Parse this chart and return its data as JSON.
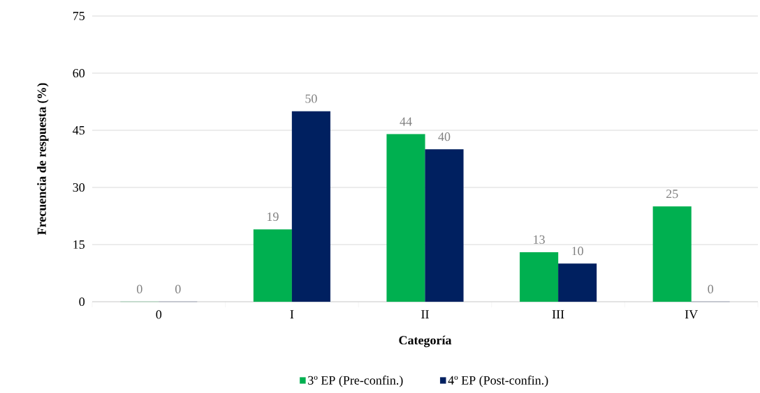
{
  "chart_data": {
    "type": "bar",
    "xlabel": "Categoría",
    "ylabel": "Frecuencia de respuesta (%)",
    "categories": [
      "0",
      "I",
      "II",
      "III",
      "IV"
    ],
    "series": [
      {
        "name": "3º EP (Pre-confin.)",
        "color": "#00b050",
        "values": [
          0,
          19,
          44,
          13,
          25
        ]
      },
      {
        "name": "4º EP (Post-confin.)",
        "color": "#002060",
        "values": [
          0,
          50,
          40,
          10,
          0
        ]
      }
    ],
    "ylim": [
      0,
      75
    ],
    "yticks": [
      0,
      15,
      30,
      45,
      60,
      75
    ],
    "grid": "y",
    "legend": "bottom",
    "data_labels": true
  }
}
